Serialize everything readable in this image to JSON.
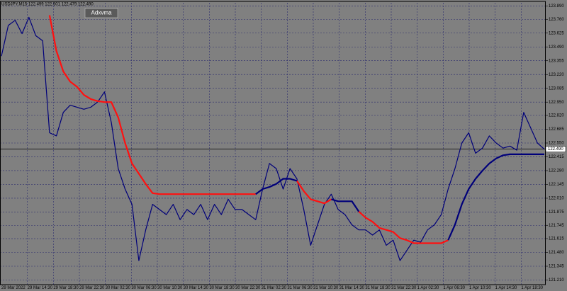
{
  "chart_data": {
    "type": "line",
    "header": "USDJPY,M15  122.499 122.501 122.479 122.490",
    "indicator": "Adxvma",
    "last_price": {
      "value": 122.49,
      "label": "122.490"
    },
    "xlabels": [
      "29 Mar 2022",
      "29 Mar 14:30",
      "29 Mar 18:30",
      "29 Mar 22:30",
      "30 Mar 02:30",
      "30 Mar 06:30",
      "30 Mar 10:30",
      "30 Mar 14:30",
      "30 Mar 18:30",
      "30 Mar 22:30",
      "31 Mar 02:30",
      "31 Mar 06:30",
      "31 Mar 10:30",
      "31 Mar 14:30",
      "31 Mar 18:30",
      "31 Mar 22:30",
      "1 Apr 02:30",
      "1 Apr 06:30",
      "1 Apr 10:30",
      "1 Apr 14:30",
      "1 Apr 18:30"
    ],
    "ylim": [
      121.165,
      123.921
    ],
    "yticks": [
      {
        "value": 123.89,
        "label": "123.890"
      },
      {
        "value": 123.76,
        "label": "123.760"
      },
      {
        "value": 123.625,
        "label": "123.625"
      },
      {
        "value": 123.49,
        "label": "123.490"
      },
      {
        "value": 123.355,
        "label": "123.355"
      },
      {
        "value": 123.22,
        "label": "123.220"
      },
      {
        "value": 123.085,
        "label": "123.085"
      },
      {
        "value": 122.95,
        "label": "122.950"
      },
      {
        "value": 122.82,
        "label": "122.820"
      },
      {
        "value": 122.685,
        "label": "122.685"
      },
      {
        "value": 122.55,
        "label": "122.550"
      },
      {
        "value": 122.415,
        "label": "122.415"
      },
      {
        "value": 122.28,
        "label": "122.280"
      },
      {
        "value": 122.145,
        "label": "122.145"
      },
      {
        "value": 122.01,
        "label": "122.010"
      },
      {
        "value": 121.875,
        "label": "121.875"
      },
      {
        "value": 121.745,
        "label": "121.745"
      },
      {
        "value": 121.615,
        "label": "121.615"
      },
      {
        "value": 121.48,
        "label": "121.480"
      },
      {
        "value": 121.345,
        "label": "121.345"
      },
      {
        "value": 121.21,
        "label": "121.210"
      }
    ],
    "grid": true,
    "series": [
      {
        "color": "#00007a",
        "values": [
          123.4,
          123.7,
          123.75,
          123.62,
          123.78,
          123.6,
          123.55,
          122.65,
          122.62,
          122.85,
          122.92,
          122.9,
          122.88,
          122.9,
          122.95,
          123.05,
          122.75,
          122.3,
          122.1,
          121.95,
          121.4,
          121.7,
          121.95,
          121.9,
          121.85,
          121.95,
          121.8,
          121.9,
          121.85,
          121.95,
          121.8,
          121.95,
          121.85,
          122.0,
          121.9,
          121.9,
          121.85,
          121.8,
          122.1,
          122.35,
          122.3,
          122.1,
          122.3,
          122.2,
          121.9,
          121.55,
          121.75,
          121.95,
          122.05,
          121.9,
          121.85,
          121.75,
          121.7,
          121.7,
          121.65,
          121.7,
          121.55,
          121.6,
          121.4,
          121.5,
          121.6,
          121.58,
          121.7,
          121.75,
          121.85,
          122.1,
          122.3,
          122.55,
          122.65,
          122.45,
          122.5,
          122.62,
          122.55,
          122.5,
          122.52,
          122.48,
          122.85,
          122.7,
          122.55,
          122.49
        ]
      },
      {
        "color": "#ff1010",
        "values": [
          null,
          null,
          null,
          null,
          null,
          null,
          null,
          123.8,
          123.45,
          123.25,
          123.15,
          123.1,
          123.02,
          122.98,
          122.96,
          122.95,
          122.95,
          122.8,
          122.55,
          122.35,
          122.25,
          122.15,
          122.06,
          122.05,
          122.05,
          122.05,
          122.05,
          122.05,
          122.05,
          122.05,
          122.05,
          122.05,
          122.05,
          122.05,
          122.05,
          122.05,
          122.05,
          122.05,
          null,
          null,
          null,
          null,
          null,
          122.18,
          122.08,
          122.0,
          121.98,
          121.96,
          122.0,
          null,
          null,
          null,
          121.88,
          121.82,
          121.78,
          121.72,
          121.7,
          121.68,
          121.62,
          121.6,
          121.57,
          121.57,
          121.57,
          121.57,
          121.57,
          121.6,
          null,
          null,
          null,
          null,
          null,
          null,
          null,
          null,
          null,
          null,
          null,
          null,
          null,
          null
        ]
      },
      {
        "color": "#00007a",
        "values": [
          null,
          null,
          null,
          null,
          null,
          null,
          null,
          null,
          null,
          null,
          null,
          null,
          null,
          null,
          null,
          null,
          null,
          null,
          null,
          null,
          null,
          null,
          null,
          null,
          null,
          null,
          null,
          null,
          null,
          null,
          null,
          null,
          null,
          null,
          null,
          null,
          null,
          122.05,
          122.1,
          122.12,
          122.15,
          122.2,
          122.2,
          122.18,
          null,
          null,
          null,
          null,
          122.0,
          121.98,
          121.98,
          121.98,
          121.88,
          null,
          null,
          null,
          null,
          null,
          null,
          null,
          null,
          null,
          null,
          null,
          null,
          121.6,
          121.75,
          121.95,
          122.1,
          122.2,
          122.28,
          122.35,
          122.4,
          122.43,
          122.44,
          122.44,
          122.44,
          122.44,
          122.44,
          122.44
        ]
      }
    ]
  }
}
